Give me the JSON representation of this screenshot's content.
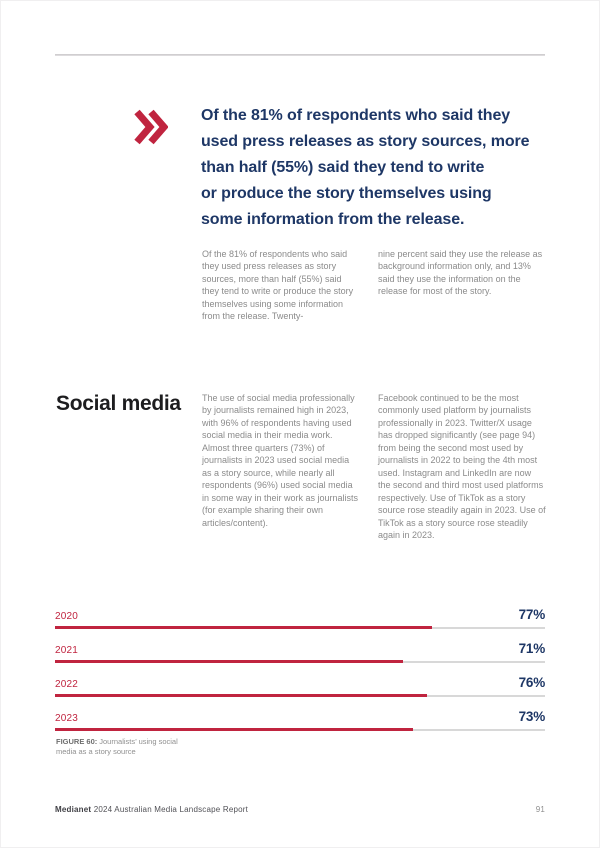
{
  "document": {
    "footer": {
      "brand": "Medianet",
      "report_title": " 2024 Australian Media Landscape Report",
      "page_number": "91"
    }
  },
  "pullquote": {
    "text": "Of the 81% of respondents who said they\nused press releases as story sources, more\nthan half (55%) said they tend to write\nor produce the story themselves using\nsome information from the release."
  },
  "intro": {
    "col1": "Of the 81% of respondents who said they used press releases as story sources, more than half (55%) said they tend to write or produce the story themselves using some information from the release. Twenty-",
    "col2": "nine percent said they use the release as background information only, and 13% said they use the information on the release for most of the story."
  },
  "social_media": {
    "heading": "Social media",
    "col1": "The use of social media professionally by journalists remained high in 2023, with 96% of respondents having used social media in their media work. Almost three quarters (73%) of journalists in 2023 used social media as a story source, while nearly all respondents (96%) used social media in some way in their work as journalists (for example sharing their own articles/content).",
    "col2": "Facebook continued to be the most commonly used platform by journalists professionally in 2023. Twitter/X usage has dropped significantly (see page 94) from being the second most used by journalists in 2022 to being the 4th most used. Instagram and LinkedIn are now the second and third most used platforms respectively. Use of TikTok as a story source rose steadily again in 2023. Use of TikTok as a story source rose steadily again in 2023."
  },
  "figure_caption": {
    "label": "FIGURE 60:",
    "text": "Journalists’ using social media as a story source"
  },
  "chart_data": {
    "type": "bar",
    "orientation": "horizontal",
    "title": "Journalists’ using social media as a story source",
    "categories": [
      "2020",
      "2021",
      "2022",
      "2023"
    ],
    "values": [
      77,
      71,
      76,
      73
    ],
    "value_labels": [
      "77%",
      "71%",
      "76%",
      "73%"
    ],
    "xlim": [
      0,
      100
    ],
    "grid": false,
    "legend": false,
    "bar_color": "#c0243f",
    "track_color": "#d8d8d8",
    "category_label_color": "#c0243f",
    "value_label_color": "#1e3766"
  },
  "icons": {
    "pullquote_marker": "double-chevron-right"
  },
  "colors": {
    "accent_red": "#c0243f",
    "navy": "#1e3766",
    "heading_dark": "#1d1d1f",
    "body_gray": "#8b8b8b",
    "rule_gray": "#cac7ca"
  }
}
